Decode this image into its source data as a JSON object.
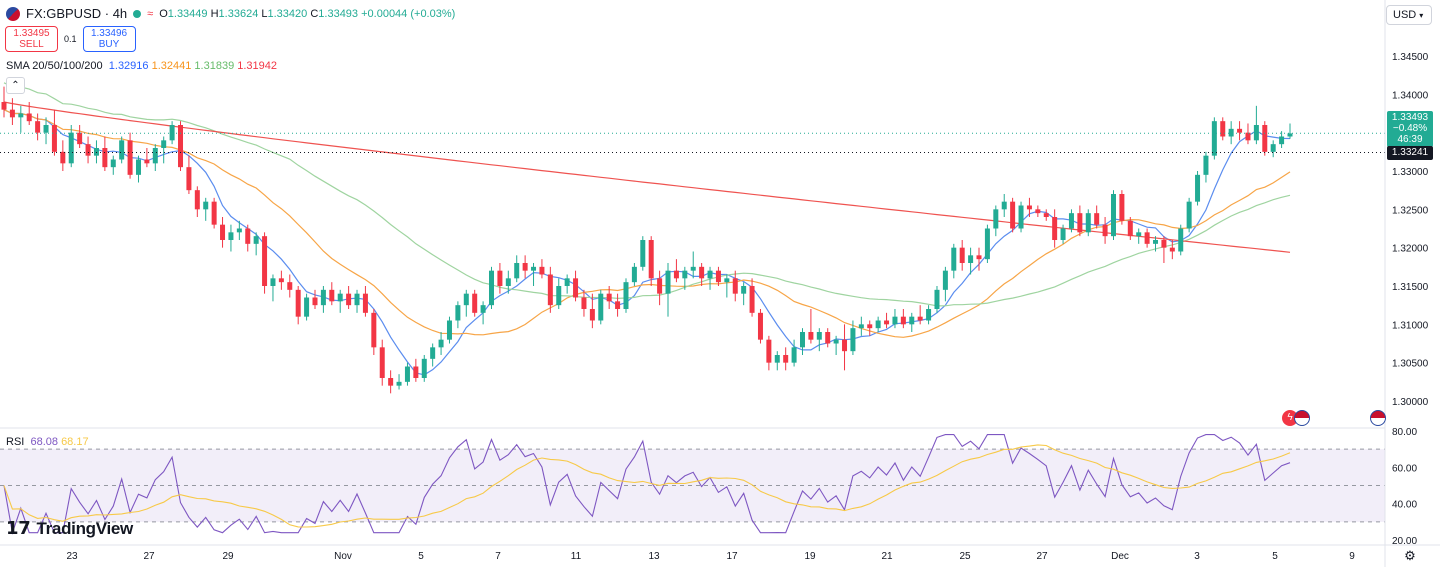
{
  "header": {
    "symbol": "FX:GBPUSD",
    "interval": "4h",
    "open_label": "O",
    "open": "1.33449",
    "high_label": "H",
    "high": "1.33624",
    "low_label": "L",
    "low": "1.33420",
    "close_label": "C",
    "close": "1.33493",
    "change": "+0.00044 (+0.03%)"
  },
  "trade": {
    "sell_price": "1.33495",
    "sell_label": "SELL",
    "spread": "0.1",
    "buy_price": "1.33496",
    "buy_label": "BUY"
  },
  "sma_legend": {
    "label": "SMA 20/50/100/200",
    "v20": "1.32916",
    "v50": "1.32441",
    "v100": "1.31839",
    "v200": "1.31942"
  },
  "rsi_legend": {
    "label": "RSI",
    "rsi": "68.08",
    "ma": "68.17"
  },
  "currency_button": "USD",
  "brand": "TradingView",
  "price_tags": {
    "last": "1.33493",
    "pct": "−0.48%",
    "countdown": "46:39",
    "level": "1.33241"
  },
  "colors": {
    "up": "#22ab94",
    "down": "#f23645",
    "sma20": "#5b8def",
    "sma50": "#f7a547",
    "sma100": "#9fd4a0",
    "sma200": "#ef5350",
    "rsi": "#7e57c2",
    "rsi_ma": "#f7c948",
    "bg_rsi": "#ede7f6"
  },
  "chart_data": {
    "type": "candlestick",
    "timeframe": "4h",
    "price_axis": {
      "ticks": [
        "1.34500",
        "1.34000",
        "1.33500",
        "1.33000",
        "1.32500",
        "1.32000",
        "1.31500",
        "1.31000",
        "1.30500",
        "1.30000"
      ],
      "range": [
        1.2985,
        1.3455
      ]
    },
    "rsi_axis": {
      "ticks": [
        "80.00",
        "60.00",
        "40.00",
        "20.00"
      ],
      "range": [
        20,
        80
      ],
      "bands": [
        70,
        50,
        30
      ]
    },
    "x_ticks": [
      "23",
      "27",
      "29",
      "Nov",
      "5",
      "7",
      "11",
      "13",
      "17",
      "19",
      "21",
      "25",
      "27",
      "Dec",
      "3",
      "5",
      "9"
    ],
    "candles": [
      [
        1.339,
        1.341,
        1.337,
        1.338
      ],
      [
        1.338,
        1.3395,
        1.336,
        1.337
      ],
      [
        1.337,
        1.3385,
        1.335,
        1.3375
      ],
      [
        1.3375,
        1.339,
        1.336,
        1.3365
      ],
      [
        1.3365,
        1.3375,
        1.334,
        1.335
      ],
      [
        1.335,
        1.337,
        1.3335,
        1.336
      ],
      [
        1.336,
        1.338,
        1.332,
        1.3325
      ],
      [
        1.3325,
        1.334,
        1.33,
        1.331
      ],
      [
        1.331,
        1.336,
        1.3305,
        1.335
      ],
      [
        1.335,
        1.336,
        1.333,
        1.3335
      ],
      [
        1.3335,
        1.3345,
        1.331,
        1.332
      ],
      [
        1.332,
        1.334,
        1.331,
        1.333
      ],
      [
        1.333,
        1.3345,
        1.33,
        1.3305
      ],
      [
        1.3305,
        1.332,
        1.3295,
        1.3315
      ],
      [
        1.3315,
        1.3345,
        1.331,
        1.334
      ],
      [
        1.334,
        1.335,
        1.329,
        1.3295
      ],
      [
        1.3295,
        1.332,
        1.3285,
        1.3315
      ],
      [
        1.3315,
        1.333,
        1.3305,
        1.331
      ],
      [
        1.331,
        1.3335,
        1.33,
        1.333
      ],
      [
        1.333,
        1.3345,
        1.331,
        1.334
      ],
      [
        1.334,
        1.3365,
        1.3335,
        1.336
      ],
      [
        1.336,
        1.3365,
        1.33,
        1.3305
      ],
      [
        1.3305,
        1.332,
        1.327,
        1.3275
      ],
      [
        1.3275,
        1.328,
        1.324,
        1.325
      ],
      [
        1.325,
        1.3265,
        1.3235,
        1.326
      ],
      [
        1.326,
        1.3265,
        1.3225,
        1.323
      ],
      [
        1.323,
        1.324,
        1.32,
        1.321
      ],
      [
        1.321,
        1.323,
        1.3195,
        1.322
      ],
      [
        1.322,
        1.3235,
        1.321,
        1.3225
      ],
      [
        1.3225,
        1.323,
        1.3195,
        1.3205
      ],
      [
        1.3205,
        1.322,
        1.319,
        1.3215
      ],
      [
        1.3215,
        1.322,
        1.314,
        1.315
      ],
      [
        1.315,
        1.3165,
        1.313,
        1.316
      ],
      [
        1.316,
        1.317,
        1.3145,
        1.3155
      ],
      [
        1.3155,
        1.3165,
        1.3135,
        1.3145
      ],
      [
        1.3145,
        1.315,
        1.31,
        1.311
      ],
      [
        1.311,
        1.314,
        1.3105,
        1.3135
      ],
      [
        1.3135,
        1.3145,
        1.312,
        1.3125
      ],
      [
        1.3125,
        1.315,
        1.3115,
        1.3145
      ],
      [
        1.3145,
        1.3155,
        1.3125,
        1.313
      ],
      [
        1.313,
        1.3145,
        1.3115,
        1.314
      ],
      [
        1.314,
        1.315,
        1.312,
        1.3125
      ],
      [
        1.3125,
        1.3145,
        1.3115,
        1.314
      ],
      [
        1.314,
        1.315,
        1.311,
        1.3115
      ],
      [
        1.3115,
        1.312,
        1.306,
        1.307
      ],
      [
        1.307,
        1.308,
        1.302,
        1.303
      ],
      [
        1.303,
        1.304,
        1.301,
        1.302
      ],
      [
        1.302,
        1.3035,
        1.3015,
        1.3025
      ],
      [
        1.3025,
        1.305,
        1.302,
        1.3045
      ],
      [
        1.3045,
        1.3055,
        1.3025,
        1.303
      ],
      [
        1.303,
        1.306,
        1.3025,
        1.3055
      ],
      [
        1.3055,
        1.3075,
        1.3045,
        1.307
      ],
      [
        1.307,
        1.309,
        1.306,
        1.308
      ],
      [
        1.308,
        1.311,
        1.3075,
        1.3105
      ],
      [
        1.3105,
        1.313,
        1.3095,
        1.3125
      ],
      [
        1.3125,
        1.3145,
        1.311,
        1.314
      ],
      [
        1.314,
        1.3145,
        1.311,
        1.3115
      ],
      [
        1.3115,
        1.313,
        1.31,
        1.3125
      ],
      [
        1.3125,
        1.3175,
        1.312,
        1.317
      ],
      [
        1.317,
        1.318,
        1.314,
        1.315
      ],
      [
        1.315,
        1.317,
        1.314,
        1.316
      ],
      [
        1.316,
        1.319,
        1.3155,
        1.318
      ],
      [
        1.318,
        1.319,
        1.316,
        1.317
      ],
      [
        1.317,
        1.318,
        1.315,
        1.3175
      ],
      [
        1.3175,
        1.3185,
        1.316,
        1.3165
      ],
      [
        1.3165,
        1.3175,
        1.3115,
        1.3125
      ],
      [
        1.3125,
        1.316,
        1.312,
        1.315
      ],
      [
        1.315,
        1.3165,
        1.314,
        1.316
      ],
      [
        1.316,
        1.317,
        1.313,
        1.3135
      ],
      [
        1.3135,
        1.3145,
        1.311,
        1.312
      ],
      [
        1.312,
        1.314,
        1.3095,
        1.3105
      ],
      [
        1.3105,
        1.3145,
        1.31,
        1.314
      ],
      [
        1.314,
        1.315,
        1.312,
        1.313
      ],
      [
        1.313,
        1.314,
        1.311,
        1.312
      ],
      [
        1.312,
        1.316,
        1.3115,
        1.3155
      ],
      [
        1.3155,
        1.318,
        1.315,
        1.3175
      ],
      [
        1.3175,
        1.3215,
        1.317,
        1.321
      ],
      [
        1.321,
        1.3215,
        1.315,
        1.316
      ],
      [
        1.316,
        1.317,
        1.3125,
        1.314
      ],
      [
        1.314,
        1.318,
        1.311,
        1.317
      ],
      [
        1.317,
        1.3185,
        1.3155,
        1.316
      ],
      [
        1.316,
        1.3175,
        1.3145,
        1.317
      ],
      [
        1.317,
        1.3195,
        1.316,
        1.3175
      ],
      [
        1.3175,
        1.318,
        1.315,
        1.316
      ],
      [
        1.316,
        1.3175,
        1.3145,
        1.317
      ],
      [
        1.317,
        1.3175,
        1.315,
        1.3155
      ],
      [
        1.3155,
        1.3165,
        1.3135,
        1.316
      ],
      [
        1.316,
        1.317,
        1.313,
        1.314
      ],
      [
        1.314,
        1.3155,
        1.3125,
        1.315
      ],
      [
        1.315,
        1.316,
        1.311,
        1.3115
      ],
      [
        1.3115,
        1.312,
        1.3075,
        1.308
      ],
      [
        1.308,
        1.3085,
        1.304,
        1.305
      ],
      [
        1.305,
        1.3065,
        1.304,
        1.306
      ],
      [
        1.306,
        1.307,
        1.304,
        1.305
      ],
      [
        1.305,
        1.308,
        1.3045,
        1.307
      ],
      [
        1.307,
        1.3095,
        1.306,
        1.309
      ],
      [
        1.309,
        1.312,
        1.3075,
        1.308
      ],
      [
        1.308,
        1.3095,
        1.3065,
        1.309
      ],
      [
        1.309,
        1.3095,
        1.307,
        1.3075
      ],
      [
        1.3075,
        1.3085,
        1.306,
        1.308
      ],
      [
        1.308,
        1.31,
        1.304,
        1.3065
      ],
      [
        1.3065,
        1.3105,
        1.306,
        1.3095
      ],
      [
        1.3095,
        1.311,
        1.3085,
        1.31
      ],
      [
        1.31,
        1.3105,
        1.3085,
        1.3095
      ],
      [
        1.3095,
        1.311,
        1.309,
        1.3105
      ],
      [
        1.3105,
        1.3115,
        1.3095,
        1.31
      ],
      [
        1.31,
        1.312,
        1.3095,
        1.311
      ],
      [
        1.311,
        1.312,
        1.3095,
        1.31
      ],
      [
        1.31,
        1.3115,
        1.309,
        1.311
      ],
      [
        1.311,
        1.3125,
        1.31,
        1.3105
      ],
      [
        1.3105,
        1.3125,
        1.31,
        1.312
      ],
      [
        1.312,
        1.315,
        1.3115,
        1.3145
      ],
      [
        1.3145,
        1.3175,
        1.313,
        1.317
      ],
      [
        1.317,
        1.3205,
        1.316,
        1.32
      ],
      [
        1.32,
        1.321,
        1.317,
        1.318
      ],
      [
        1.318,
        1.32,
        1.3165,
        1.319
      ],
      [
        1.319,
        1.32,
        1.317,
        1.3185
      ],
      [
        1.3185,
        1.323,
        1.318,
        1.3225
      ],
      [
        1.3225,
        1.3255,
        1.3215,
        1.325
      ],
      [
        1.325,
        1.327,
        1.324,
        1.326
      ],
      [
        1.326,
        1.3265,
        1.322,
        1.3225
      ],
      [
        1.3225,
        1.326,
        1.322,
        1.3255
      ],
      [
        1.3255,
        1.3265,
        1.324,
        1.325
      ],
      [
        1.325,
        1.3255,
        1.324,
        1.3245
      ],
      [
        1.3245,
        1.325,
        1.3235,
        1.324
      ],
      [
        1.324,
        1.325,
        1.32,
        1.321
      ],
      [
        1.321,
        1.323,
        1.3205,
        1.3225
      ],
      [
        1.3225,
        1.325,
        1.322,
        1.3245
      ],
      [
        1.3245,
        1.3255,
        1.3215,
        1.322
      ],
      [
        1.322,
        1.325,
        1.3215,
        1.3245
      ],
      [
        1.3245,
        1.3255,
        1.3225,
        1.323
      ],
      [
        1.323,
        1.324,
        1.3205,
        1.3215
      ],
      [
        1.3215,
        1.3275,
        1.321,
        1.327
      ],
      [
        1.327,
        1.3275,
        1.323,
        1.3235
      ],
      [
        1.3235,
        1.324,
        1.321,
        1.3215
      ],
      [
        1.3215,
        1.3225,
        1.3205,
        1.322
      ],
      [
        1.322,
        1.3225,
        1.32,
        1.3205
      ],
      [
        1.3205,
        1.3215,
        1.3195,
        1.321
      ],
      [
        1.321,
        1.3215,
        1.318,
        1.32
      ],
      [
        1.32,
        1.321,
        1.3185,
        1.3195
      ],
      [
        1.3195,
        1.323,
        1.319,
        1.3225
      ],
      [
        1.3225,
        1.3265,
        1.322,
        1.326
      ],
      [
        1.326,
        1.33,
        1.3255,
        1.3295
      ],
      [
        1.3295,
        1.3325,
        1.3285,
        1.332
      ],
      [
        1.332,
        1.337,
        1.3315,
        1.3365
      ],
      [
        1.3365,
        1.337,
        1.334,
        1.3345
      ],
      [
        1.3345,
        1.3365,
        1.3335,
        1.3355
      ],
      [
        1.3355,
        1.3365,
        1.334,
        1.335
      ],
      [
        1.335,
        1.3362,
        1.3335,
        1.334
      ],
      [
        1.334,
        1.3385,
        1.3335,
        1.336
      ],
      [
        1.336,
        1.3365,
        1.332,
        1.3325
      ],
      [
        1.3325,
        1.334,
        1.3318,
        1.3335
      ],
      [
        1.3335,
        1.3352,
        1.333,
        1.3345
      ],
      [
        1.3345,
        1.3362,
        1.3342,
        1.3349
      ]
    ]
  }
}
